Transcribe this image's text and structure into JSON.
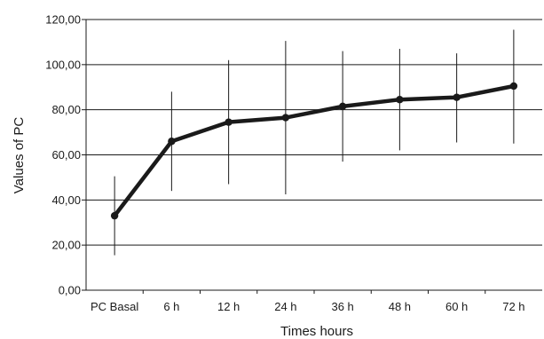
{
  "chart_data": {
    "type": "line",
    "title": "",
    "xlabel": "Times hours",
    "ylabel": "Values of PC",
    "categories": [
      "PC Basal",
      "6 h",
      "12 h",
      "24 h",
      "36 h",
      "48 h",
      "60 h",
      "72 h"
    ],
    "y_tick_labels": [
      "0,00",
      "20,00",
      "40,00",
      "60,00",
      "80,00",
      "100,00",
      "120,00"
    ],
    "ylim": [
      0,
      120
    ],
    "y_ticks": [
      0,
      20,
      40,
      60,
      80,
      100,
      120
    ],
    "grid": "horizontal",
    "legend": "none",
    "series": [
      {
        "values": [
          33.0,
          66.0,
          74.5,
          76.5,
          81.5,
          84.5,
          85.5,
          90.5
        ],
        "error_low": [
          15.5,
          44.0,
          47.0,
          42.5,
          57.0,
          62.0,
          65.5,
          65.0
        ],
        "error_high": [
          50.5,
          88.0,
          102.0,
          110.5,
          106.0,
          107.0,
          105.0,
          115.5
        ]
      }
    ],
    "colors": {
      "line": "#1a1a1a",
      "grid": "#1a1a1a",
      "axis": "#1a1a1a"
    }
  }
}
